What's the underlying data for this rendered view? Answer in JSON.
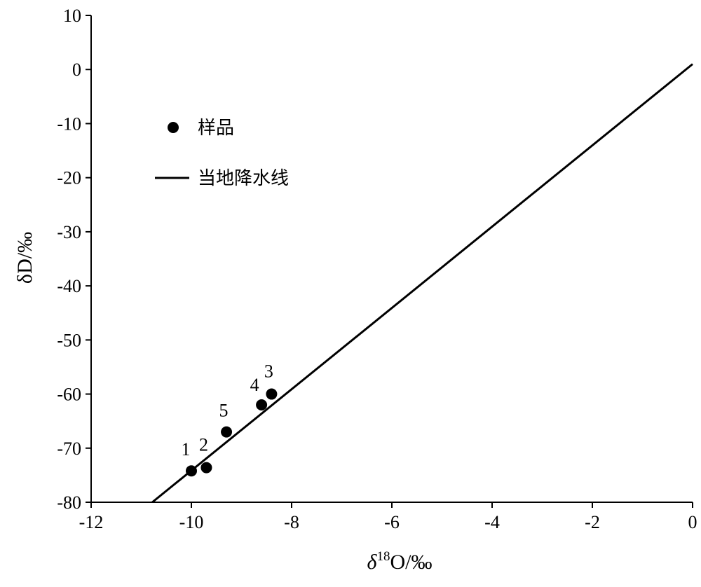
{
  "chart_data": {
    "type": "scatter",
    "xlim": [
      -12,
      0
    ],
    "ylim": [
      -80,
      10
    ],
    "x_ticks": [
      -12,
      -10,
      -8,
      -6,
      -4,
      -2,
      0
    ],
    "y_ticks": [
      10,
      0,
      -10,
      -20,
      -30,
      -40,
      -50,
      -60,
      -70,
      -80
    ],
    "xlabel": {
      "prefix": "δ",
      "superscript": "18",
      "suffix": "O/‰"
    },
    "ylabel": "δD/‰",
    "grid": false,
    "legend_position": "top-left",
    "series": [
      {
        "name": "样品",
        "kind": "points",
        "color": "#000000",
        "points": [
          {
            "label": "1",
            "x": -10.0,
            "y": -74.2
          },
          {
            "label": "2",
            "x": -9.7,
            "y": -73.6
          },
          {
            "label": "3",
            "x": -8.4,
            "y": -60.0
          },
          {
            "label": "4",
            "x": -8.6,
            "y": -62.0
          },
          {
            "label": "5",
            "x": -9.3,
            "y": -67.0
          }
        ]
      },
      {
        "name": "当地降水线",
        "kind": "line",
        "color": "#000000",
        "line": [
          {
            "x": -10.78,
            "y": -80
          },
          {
            "x": 0,
            "y": 1
          }
        ]
      }
    ]
  }
}
